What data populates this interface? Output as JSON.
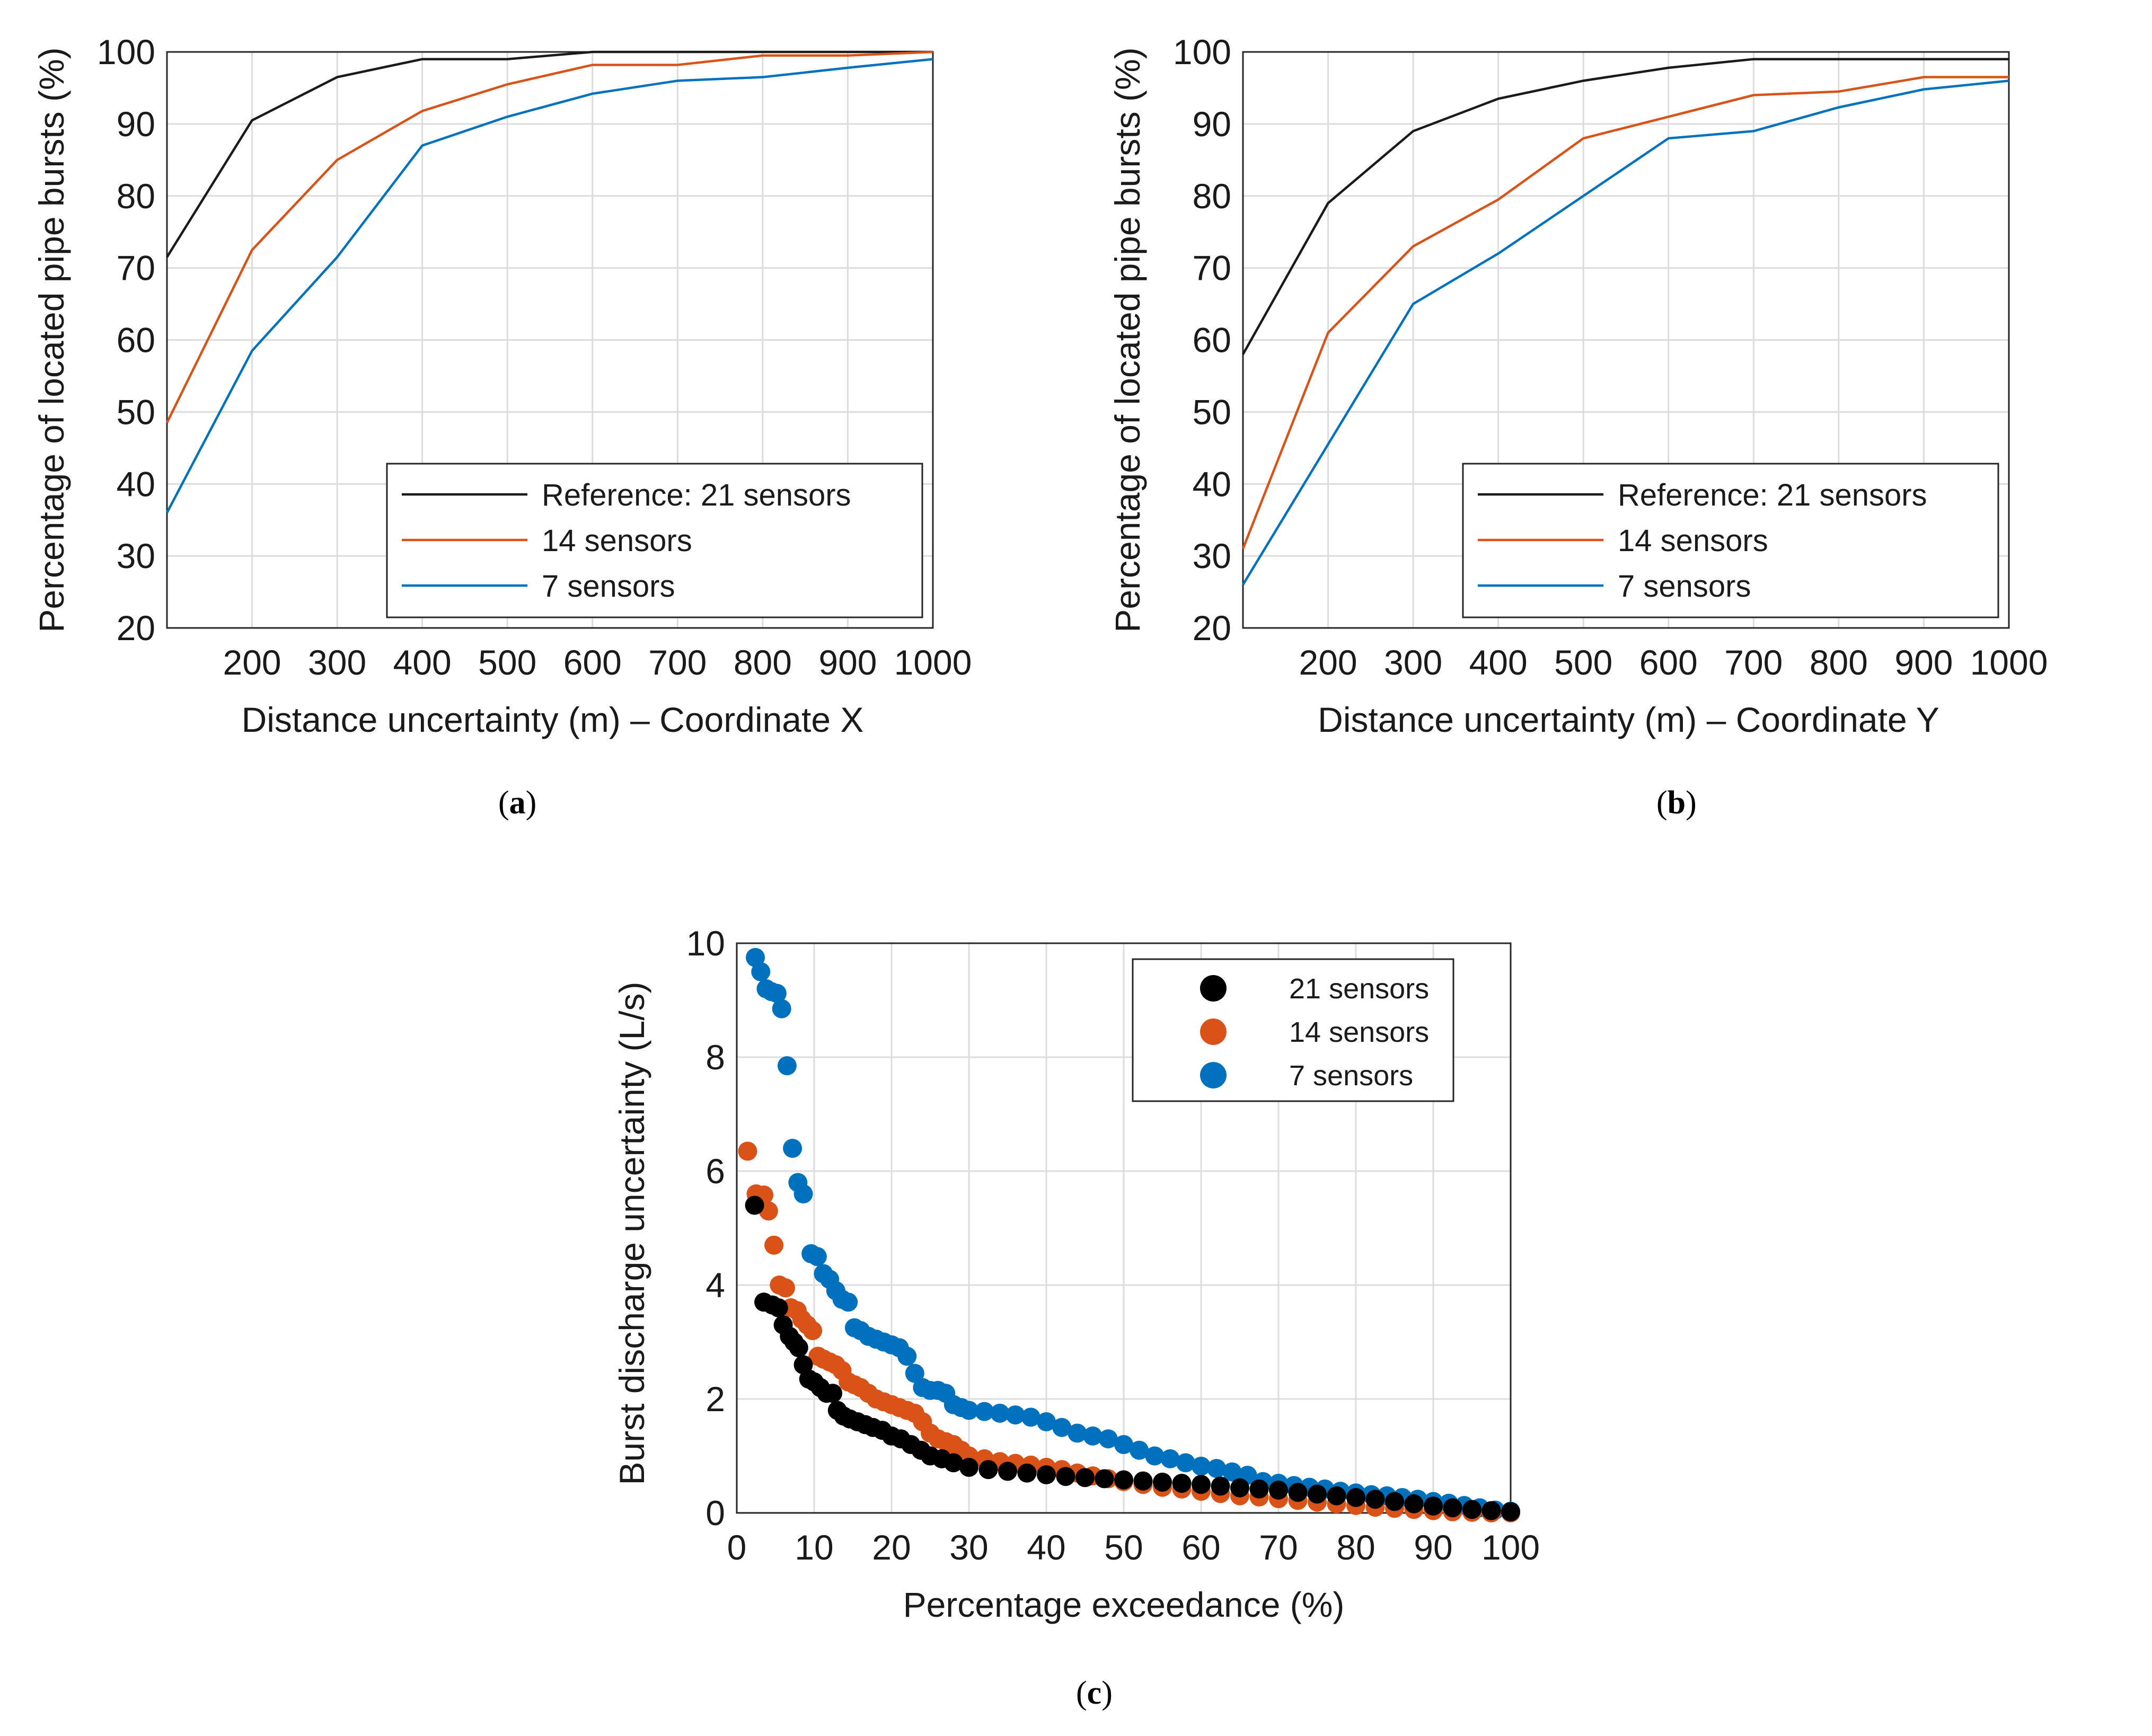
{
  "chart_data": [
    {
      "id": "a",
      "type": "line",
      "caption_letter": "a",
      "xlabel": "Distance uncertainty (m) – Coordinate X",
      "ylabel": "Percentage of located pipe bursts (%)",
      "xlim": [
        100,
        1000
      ],
      "ylim": [
        20,
        100
      ],
      "xticks": [
        200,
        300,
        400,
        500,
        600,
        700,
        800,
        900,
        1000
      ],
      "yticks": [
        20,
        30,
        40,
        50,
        60,
        70,
        80,
        90,
        100
      ],
      "x": [
        100,
        200,
        300,
        400,
        500,
        600,
        700,
        800,
        900,
        1000
      ],
      "series": [
        {
          "name": "Reference: 21 sensors",
          "color": "#1a1a1a",
          "values": [
            71.5,
            90.5,
            96.5,
            99,
            99,
            100,
            100,
            100,
            100,
            100
          ]
        },
        {
          "name": "14 sensors",
          "color": "#d95319",
          "values": [
            48.5,
            72.5,
            85,
            91.8,
            95.5,
            98.2,
            98.2,
            99.5,
            99.5,
            100
          ]
        },
        {
          "name": "7 sensors",
          "color": "#0072bd",
          "values": [
            36,
            58.5,
            71.5,
            87,
            91,
            94.2,
            96,
            96.5,
            97.8,
            99
          ]
        }
      ],
      "legend_position": "bottom-right"
    },
    {
      "id": "b",
      "type": "line",
      "caption_letter": "b",
      "xlabel": "Distance uncertainty (m) – Coordinate Y",
      "ylabel": "Percentage of located pipe bursts (%)",
      "xlim": [
        100,
        1000
      ],
      "ylim": [
        20,
        100
      ],
      "xticks": [
        200,
        300,
        400,
        500,
        600,
        700,
        800,
        900,
        1000
      ],
      "yticks": [
        20,
        30,
        40,
        50,
        60,
        70,
        80,
        90,
        100
      ],
      "x": [
        100,
        200,
        300,
        400,
        500,
        600,
        700,
        800,
        900,
        1000
      ],
      "series": [
        {
          "name": "Reference: 21 sensors",
          "color": "#1a1a1a",
          "values": [
            58,
            79,
            89,
            93.5,
            96,
            97.8,
            99,
            99,
            99,
            99
          ]
        },
        {
          "name": "14 sensors",
          "color": "#d95319",
          "values": [
            31,
            61,
            73,
            79.5,
            88,
            91,
            94,
            94.5,
            96.5,
            96.5
          ]
        },
        {
          "name": "7 sensors",
          "color": "#0072bd",
          "values": [
            26,
            45.5,
            65,
            72,
            80,
            88,
            89,
            92.3,
            94.8,
            96
          ]
        }
      ],
      "legend_position": "bottom-right"
    },
    {
      "id": "c",
      "type": "scatter",
      "caption_letter": "c",
      "xlabel": "Percentage exceedance (%)",
      "ylabel": "Burst discharge uncertainty (L/s)",
      "xlim": [
        0,
        100
      ],
      "ylim": [
        0,
        10
      ],
      "xticks": [
        0,
        10,
        20,
        30,
        40,
        50,
        60,
        70,
        80,
        90,
        100
      ],
      "yticks": [
        0,
        2,
        4,
        6,
        8,
        10
      ],
      "legend_position": "top-right",
      "series": [
        {
          "name": "21 sensors",
          "color": "#000000",
          "points": [
            [
              2.3,
              5.4
            ],
            [
              3.5,
              3.7
            ],
            [
              4.6,
              3.65
            ],
            [
              5.4,
              3.6
            ],
            [
              6.0,
              3.3
            ],
            [
              6.8,
              3.1
            ],
            [
              7.4,
              3.0
            ],
            [
              8.0,
              2.9
            ],
            [
              8.6,
              2.6
            ],
            [
              9.3,
              2.35
            ],
            [
              10.0,
              2.3
            ],
            [
              10.8,
              2.2
            ],
            [
              11.6,
              2.1
            ],
            [
              12.4,
              2.1
            ],
            [
              13.0,
              1.8
            ],
            [
              13.8,
              1.7
            ],
            [
              14.6,
              1.65
            ],
            [
              15.6,
              1.6
            ],
            [
              16.6,
              1.55
            ],
            [
              17.6,
              1.5
            ],
            [
              18.8,
              1.45
            ],
            [
              20,
              1.35
            ],
            [
              21.2,
              1.3
            ],
            [
              22.5,
              1.2
            ],
            [
              23.8,
              1.1
            ],
            [
              25,
              1.0
            ],
            [
              26.5,
              0.95
            ],
            [
              28,
              0.88
            ],
            [
              30,
              0.8
            ],
            [
              32.5,
              0.76
            ],
            [
              35,
              0.73
            ],
            [
              37.5,
              0.7
            ],
            [
              40,
              0.67
            ],
            [
              42.5,
              0.64
            ],
            [
              45,
              0.62
            ],
            [
              47.5,
              0.6
            ],
            [
              50,
              0.58
            ],
            [
              52.5,
              0.56
            ],
            [
              55,
              0.54
            ],
            [
              57.5,
              0.52
            ],
            [
              60,
              0.5
            ],
            [
              62.5,
              0.47
            ],
            [
              65,
              0.44
            ],
            [
              67.5,
              0.42
            ],
            [
              70,
              0.4
            ],
            [
              72.5,
              0.36
            ],
            [
              75,
              0.33
            ],
            [
              77.5,
              0.3
            ],
            [
              80,
              0.27
            ],
            [
              82.5,
              0.24
            ],
            [
              85,
              0.2
            ],
            [
              87.5,
              0.16
            ],
            [
              90,
              0.12
            ],
            [
              92.5,
              0.09
            ],
            [
              95,
              0.06
            ],
            [
              97.5,
              0.04
            ],
            [
              100,
              0.02
            ]
          ]
        },
        {
          "name": "14 sensors",
          "color": "#d95319",
          "points": [
            [
              1.4,
              6.35
            ],
            [
              2.5,
              5.6
            ],
            [
              3.5,
              5.58
            ],
            [
              4.1,
              5.3
            ],
            [
              4.8,
              4.7
            ],
            [
              5.5,
              4.0
            ],
            [
              6.3,
              3.95
            ],
            [
              7.0,
              3.6
            ],
            [
              7.8,
              3.55
            ],
            [
              8.4,
              3.4
            ],
            [
              9.1,
              3.3
            ],
            [
              9.8,
              3.2
            ],
            [
              10.5,
              2.75
            ],
            [
              11.2,
              2.7
            ],
            [
              12,
              2.65
            ],
            [
              12.8,
              2.6
            ],
            [
              13.6,
              2.5
            ],
            [
              14.4,
              2.3
            ],
            [
              15.2,
              2.25
            ],
            [
              16,
              2.2
            ],
            [
              17,
              2.1
            ],
            [
              18,
              2.0
            ],
            [
              19,
              1.95
            ],
            [
              20,
              1.9
            ],
            [
              21,
              1.85
            ],
            [
              22,
              1.8
            ],
            [
              23,
              1.75
            ],
            [
              24,
              1.6
            ],
            [
              25,
              1.4
            ],
            [
              26,
              1.3
            ],
            [
              27,
              1.25
            ],
            [
              28,
              1.2
            ],
            [
              29,
              1.1
            ],
            [
              30,
              1.0
            ],
            [
              32,
              0.95
            ],
            [
              34,
              0.9
            ],
            [
              36,
              0.87
            ],
            [
              38,
              0.84
            ],
            [
              40,
              0.8
            ],
            [
              42,
              0.76
            ],
            [
              44,
              0.7
            ],
            [
              46,
              0.65
            ],
            [
              48,
              0.6
            ],
            [
              50,
              0.55
            ],
            [
              52.5,
              0.5
            ],
            [
              55,
              0.45
            ],
            [
              57.5,
              0.42
            ],
            [
              60,
              0.38
            ],
            [
              62.5,
              0.34
            ],
            [
              65,
              0.3
            ],
            [
              67.5,
              0.28
            ],
            [
              70,
              0.25
            ],
            [
              72.5,
              0.22
            ],
            [
              75,
              0.19
            ],
            [
              77.5,
              0.16
            ],
            [
              80,
              0.13
            ],
            [
              82.5,
              0.1
            ],
            [
              85,
              0.08
            ],
            [
              87.5,
              0.06
            ],
            [
              90,
              0.04
            ],
            [
              92.5,
              0.02
            ],
            [
              95,
              0.01
            ],
            [
              97.5,
              0.0
            ],
            [
              100,
              0.0
            ]
          ]
        },
        {
          "name": "7 sensors",
          "color": "#0072bd",
          "points": [
            [
              2.4,
              9.75
            ],
            [
              3.1,
              9.5
            ],
            [
              3.8,
              9.2
            ],
            [
              4.5,
              9.15
            ],
            [
              5.2,
              9.12
            ],
            [
              5.8,
              8.85
            ],
            [
              6.5,
              7.85
            ],
            [
              7.2,
              6.4
            ],
            [
              7.9,
              5.8
            ],
            [
              8.6,
              5.6
            ],
            [
              9.6,
              4.55
            ],
            [
              10.4,
              4.5
            ],
            [
              11.2,
              4.2
            ],
            [
              12,
              4.1
            ],
            [
              12.8,
              3.9
            ],
            [
              13.6,
              3.75
            ],
            [
              14.4,
              3.7
            ],
            [
              15.2,
              3.25
            ],
            [
              16,
              3.2
            ],
            [
              17,
              3.1
            ],
            [
              18,
              3.05
            ],
            [
              19,
              3.0
            ],
            [
              20,
              2.95
            ],
            [
              21,
              2.9
            ],
            [
              22,
              2.75
            ],
            [
              23,
              2.45
            ],
            [
              24,
              2.2
            ],
            [
              25,
              2.15
            ],
            [
              26,
              2.15
            ],
            [
              27,
              2.1
            ],
            [
              28,
              1.9
            ],
            [
              29,
              1.85
            ],
            [
              30,
              1.8
            ],
            [
              32,
              1.78
            ],
            [
              34,
              1.75
            ],
            [
              36,
              1.72
            ],
            [
              38,
              1.68
            ],
            [
              40,
              1.6
            ],
            [
              42,
              1.5
            ],
            [
              44,
              1.4
            ],
            [
              46,
              1.35
            ],
            [
              48,
              1.3
            ],
            [
              50,
              1.2
            ],
            [
              52,
              1.1
            ],
            [
              54,
              1.0
            ],
            [
              56,
              0.95
            ],
            [
              58,
              0.88
            ],
            [
              60,
              0.82
            ],
            [
              62,
              0.78
            ],
            [
              64,
              0.72
            ],
            [
              66,
              0.66
            ],
            [
              68,
              0.55
            ],
            [
              70,
              0.52
            ],
            [
              72,
              0.48
            ],
            [
              74,
              0.45
            ],
            [
              76,
              0.42
            ],
            [
              78,
              0.38
            ],
            [
              80,
              0.35
            ],
            [
              82,
              0.32
            ],
            [
              84,
              0.3
            ],
            [
              86,
              0.27
            ],
            [
              88,
              0.24
            ],
            [
              90,
              0.2
            ],
            [
              92,
              0.17
            ],
            [
              94,
              0.13
            ],
            [
              96,
              0.09
            ],
            [
              98,
              0.05
            ],
            [
              100,
              0.03
            ]
          ]
        }
      ]
    }
  ]
}
